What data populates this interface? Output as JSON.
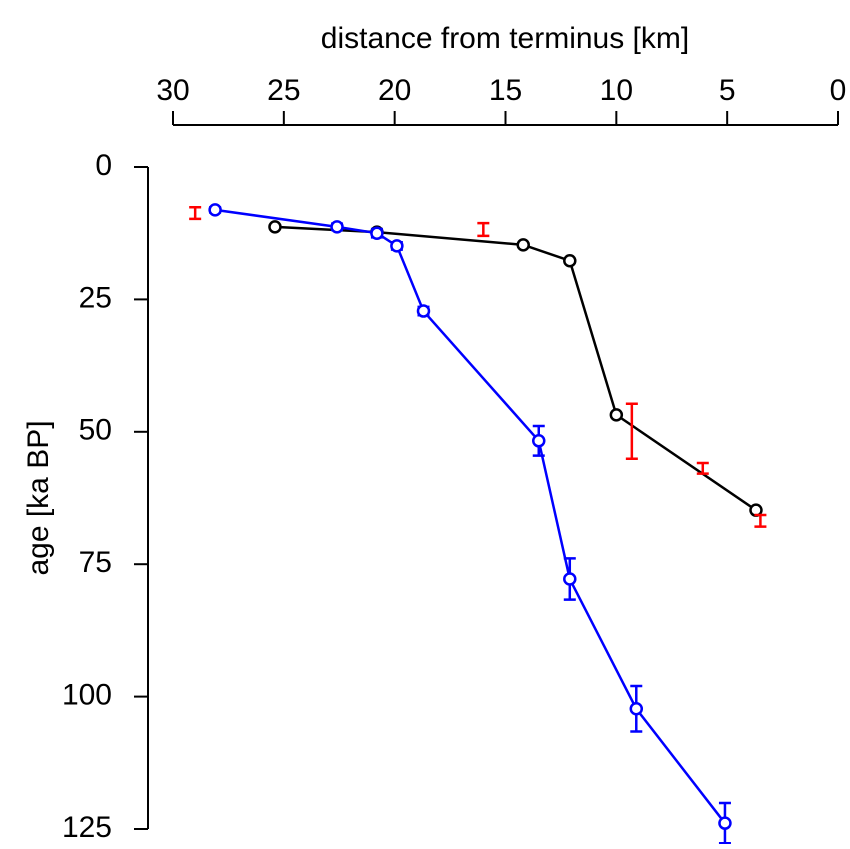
{
  "chart_data": {
    "type": "scatter",
    "x_label": "distance from terminus [km]",
    "y_label": "age [ka BP]",
    "x_axis_position": "top",
    "y_inverted": true,
    "xlim": [
      30,
      0
    ],
    "xticks": [
      30,
      25,
      20,
      15,
      10,
      5,
      0
    ],
    "ylim": [
      0,
      125
    ],
    "yticks": [
      0,
      25,
      50,
      75,
      100,
      125
    ],
    "series": [
      {
        "color": "#000000",
        "marker": "circle",
        "line": true,
        "x": [
          25.4,
          20.8,
          14.2,
          12.1,
          10.0,
          3.7
        ],
        "values": [
          11.3,
          12.3,
          14.7,
          17.7,
          46.8,
          64.8
        ]
      },
      {
        "color": "#0000ff",
        "marker": "circle",
        "line": true,
        "x": [
          28.1,
          22.6,
          20.8,
          19.9,
          18.7,
          13.5,
          12.1,
          9.1,
          5.1
        ],
        "values": [
          8.1,
          11.3,
          12.5,
          14.9,
          27.2,
          51.7,
          77.8,
          102.3,
          123.9
        ],
        "errors": [
          0.5,
          0.6,
          0.8,
          0.7,
          0.8,
          2.8,
          3.9,
          4.3,
          3.8
        ]
      },
      {
        "color": "#ff0000",
        "marker": "none",
        "line": false,
        "x": [
          29.0,
          16.0,
          9.3,
          6.1,
          3.5
        ],
        "values": [
          8.7,
          11.8,
          49.9,
          56.9,
          66.8
        ],
        "errors": [
          1.1,
          1.2,
          5.2,
          1.0,
          1.1
        ]
      }
    ]
  }
}
